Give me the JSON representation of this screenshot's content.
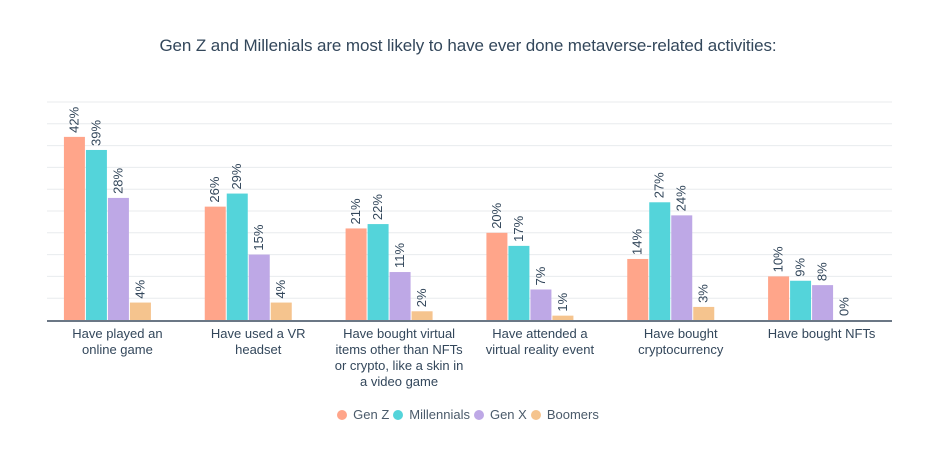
{
  "chart_data": {
    "type": "bar",
    "title": "Gen Z and Millenials are most likely to have ever done metaverse-related activities:",
    "xlabel": "",
    "ylabel": "",
    "ylim": [
      0,
      50
    ],
    "grid": true,
    "legend_position": "bottom-center",
    "value_label_suffix": "%",
    "categories": [
      [
        "Have played an",
        "online game"
      ],
      [
        "Have used a VR",
        "headset"
      ],
      [
        "Have bought virtual",
        "items other than NFTs",
        "or crypto, like a skin in",
        "a video game"
      ],
      [
        "Have attended a",
        "virtual reality event"
      ],
      [
        "Have bought",
        "cryptocurrency"
      ],
      [
        "Have bought NFTs"
      ]
    ],
    "series": [
      {
        "name": "Gen Z",
        "color": "#ffa58a",
        "values": [
          42,
          26,
          21,
          20,
          14,
          10
        ]
      },
      {
        "name": "Millennials",
        "color": "#54d4da",
        "values": [
          39,
          29,
          22,
          17,
          27,
          9
        ]
      },
      {
        "name": "Gen X",
        "color": "#bea8e6",
        "values": [
          28,
          15,
          11,
          7,
          24,
          8
        ]
      },
      {
        "name": "Boomers",
        "color": "#f5c48e",
        "values": [
          4,
          4,
          2,
          1,
          3,
          0
        ]
      }
    ]
  }
}
